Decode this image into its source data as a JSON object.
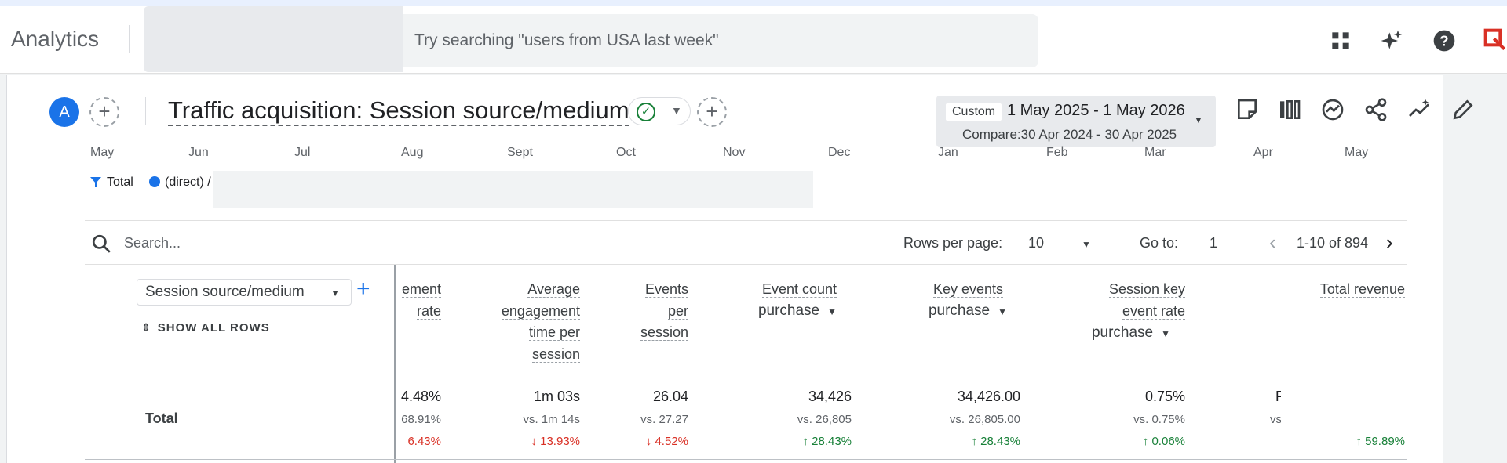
{
  "app": {
    "name": "Analytics"
  },
  "search": {
    "placeholder": "Try searching \"users from USA last week\""
  },
  "topbar_icons": [
    "apps-icon",
    "insights-sparkle-icon",
    "help-icon",
    "brand-logo-icon"
  ],
  "header": {
    "avatar_letter": "A",
    "title": "Traffic acquisition: Session source/medium",
    "date": {
      "badge": "Custom",
      "range": "1 May 2025 - 1 May 2026",
      "compare": "Compare:30 Apr 2024 - 30 Apr 2025"
    }
  },
  "chart_axis": [
    "May",
    "Jun",
    "Jul",
    "Aug",
    "Sept",
    "Oct",
    "Nov",
    "Dec",
    "Jan",
    "Feb",
    "Mar",
    "Apr",
    "May"
  ],
  "legend": {
    "total": "Total",
    "direct": "(direct) /"
  },
  "table_controls": {
    "search_placeholder": "Search...",
    "rows_label": "Rows per page:",
    "rows_value": "10",
    "goto_label": "Go to:",
    "goto_value": "1",
    "page_info": "1-10 of 894"
  },
  "dimension": {
    "select": "Session source/medium",
    "show_all": "SHOW ALL ROWS"
  },
  "columns": [
    {
      "lines": [
        "ement",
        "rate"
      ],
      "sub": ""
    },
    {
      "lines": [
        "Average",
        "engagement",
        "time per",
        "session"
      ],
      "sub": ""
    },
    {
      "lines": [
        "Events",
        "per",
        "session"
      ],
      "sub": ""
    },
    {
      "lines": [
        "Event count"
      ],
      "sub": "purchase"
    },
    {
      "lines": [
        "Key events"
      ],
      "sub": "purchase"
    },
    {
      "lines": [
        "Session key",
        "event rate"
      ],
      "sub": "purchase"
    },
    {
      "lines": [
        "Total revenue"
      ],
      "sub": ""
    }
  ],
  "total_row": {
    "label": "Total",
    "cells": [
      {
        "value": "4.48%",
        "compare": "68.91%",
        "change": "6.43%",
        "dir": "down"
      },
      {
        "value": "1m 03s",
        "compare": "vs. 1m 14s",
        "change": "↓ 13.93%",
        "dir": "down"
      },
      {
        "value": "26.04",
        "compare": "vs. 27.27",
        "change": "↓ 4.52%",
        "dir": "down"
      },
      {
        "value": "34,426",
        "compare": "vs. 26,805",
        "change": "↑ 28.43%",
        "dir": "up"
      },
      {
        "value": "34,426.00",
        "compare": "vs. 26,805.00",
        "change": "↑ 28.43%",
        "dir": "up"
      },
      {
        "value": "0.75%",
        "compare": "vs. 0.75%",
        "change": "↑ 0.06%",
        "dir": "up"
      },
      {
        "value": "F",
        "compare": "vs",
        "change": "↑ 59.89%",
        "dir": "up"
      }
    ]
  }
}
